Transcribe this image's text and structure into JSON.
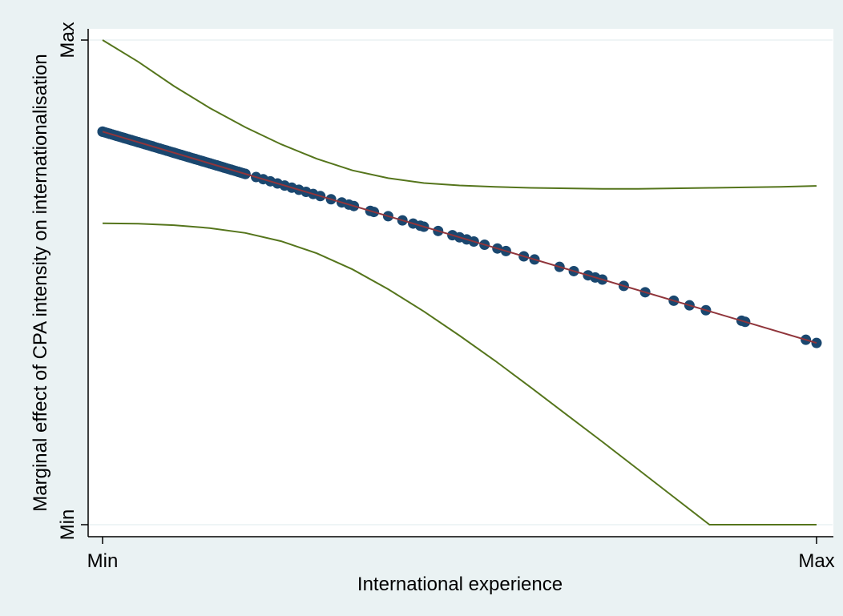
{
  "colors": {
    "outer_background": "#eaf2f3",
    "plot_background": "#ffffff",
    "grid": "#eaf2f3",
    "ci_line": "#55751c",
    "fit_line": "#90353b",
    "marker": "#1a476f"
  },
  "chart_data": {
    "type": "line",
    "title": "",
    "xlabel": "International experience",
    "ylabel": "Marginal effect of CPA intensity on internationalisation",
    "xlim": [
      0,
      1
    ],
    "ylim": [
      0,
      1
    ],
    "x_ticks": [
      {
        "value": 0,
        "label": "Min"
      },
      {
        "value": 1,
        "label": "Max"
      }
    ],
    "y_ticks": [
      {
        "value": 0,
        "label": "Min"
      },
      {
        "value": 1,
        "label": "Max"
      }
    ],
    "grid": true,
    "legend": "none",
    "series": [
      {
        "role": "upper_ci",
        "x": [
          0,
          0.05,
          0.1,
          0.15,
          0.2,
          0.25,
          0.3,
          0.35,
          0.4,
          0.45,
          0.5,
          0.55,
          0.6,
          0.65,
          0.7,
          0.75,
          0.8,
          0.85,
          0.9,
          0.95,
          1
        ],
        "y": [
          1.0,
          0.955,
          0.905,
          0.86,
          0.82,
          0.785,
          0.755,
          0.731,
          0.715,
          0.705,
          0.7,
          0.697,
          0.695,
          0.694,
          0.693,
          0.693,
          0.694,
          0.695,
          0.696,
          0.697,
          0.699
        ]
      },
      {
        "role": "lower_ci",
        "x": [
          0,
          0.05,
          0.1,
          0.15,
          0.2,
          0.25,
          0.3,
          0.35,
          0.4,
          0.45,
          0.5,
          0.55,
          0.6,
          0.65,
          0.7,
          0.75,
          0.8,
          0.85,
          0.9,
          0.95,
          1
        ],
        "y": [
          0.622,
          0.621,
          0.618,
          0.612,
          0.602,
          0.585,
          0.56,
          0.527,
          0.486,
          0.44,
          0.39,
          0.338,
          0.283,
          0.227,
          0.171,
          0.114,
          0.057,
          0.0,
          -0.057,
          -0.114,
          0.0
        ]
      },
      {
        "role": "marginal_effect",
        "x": [
          0,
          1
        ],
        "y": [
          0.811,
          0.375
        ]
      }
    ],
    "points_x": [
      0,
      0.01,
      0.02,
      0.03,
      0.04,
      0.05,
      0.06,
      0.07,
      0.08,
      0.09,
      0.1,
      0.11,
      0.12,
      0.13,
      0.14,
      0.15,
      0.16,
      0.17,
      0.18,
      0.19,
      0.2,
      0.215,
      0.225,
      0.235,
      0.245,
      0.255,
      0.265,
      0.275,
      0.285,
      0.295,
      0.305,
      0.32,
      0.335,
      0.345,
      0.352,
      0.375,
      0.38,
      0.4,
      0.42,
      0.435,
      0.445,
      0.45,
      0.47,
      0.49,
      0.5,
      0.51,
      0.52,
      0.535,
      0.553,
      0.565,
      0.59,
      0.605,
      0.64,
      0.66,
      0.68,
      0.69,
      0.7,
      0.73,
      0.76,
      0.8,
      0.822,
      0.845,
      0.895,
      0.9,
      0.985,
      1.0
    ]
  }
}
